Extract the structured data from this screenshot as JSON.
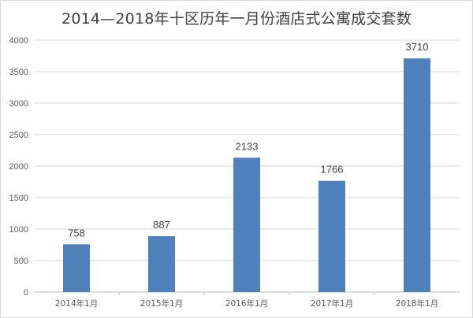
{
  "chart_data": {
    "type": "bar",
    "title": "2014—2018年十区历年一月份酒店式公寓成交套数",
    "categories": [
      "2014年1月",
      "2015年1月",
      "2016年1月",
      "2017年1月",
      "2018年1月"
    ],
    "values": [
      758,
      887,
      2133,
      1766,
      3710
    ],
    "ylim": [
      0,
      4000
    ],
    "yticks": [
      0,
      500,
      1000,
      1500,
      2000,
      2500,
      3000,
      3500,
      4000
    ],
    "grid": true,
    "legend": "none",
    "bar_color": "#4f81bd",
    "label_color": "#404040",
    "highlight_label_color": "#c00000",
    "highlight_index": 4
  }
}
